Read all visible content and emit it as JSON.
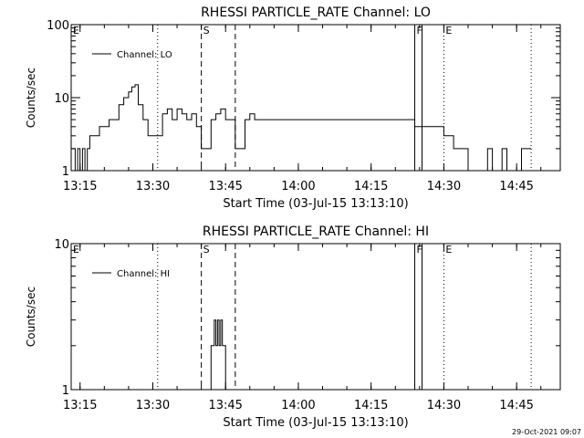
{
  "footer": {
    "timestamp": "29-Oct-2021 09:07"
  },
  "chart_data": [
    {
      "type": "line",
      "title": "RHESSI PARTICLE_RATE Channel: LO",
      "xlabel": "Start Time (03-Jul-15 13:13:10)",
      "ylabel": "Counts/sec",
      "y_scale": "log",
      "ylim": [
        1,
        100
      ],
      "xlim": [
        "13:13:10",
        "14:54:00"
      ],
      "x_ticks": [
        "13:15",
        "13:30",
        "13:45",
        "14:00",
        "14:15",
        "14:30",
        "14:45"
      ],
      "y_ticks": [
        "1",
        "10",
        "100"
      ],
      "legend": "Channel: LO",
      "legend_position": "top-left",
      "markers": [
        {
          "label": "E",
          "time": "13:13:10",
          "style": "none"
        },
        {
          "label": "",
          "time": "13:31:00",
          "style": "dotted"
        },
        {
          "label": "S",
          "time": "13:40:00",
          "style": "dashed"
        },
        {
          "label": "",
          "time": "13:47:00",
          "style": "dashed"
        },
        {
          "label": "F",
          "time": "14:24:00",
          "style": "solid"
        },
        {
          "label": "",
          "time": "14:25:30",
          "style": "solid"
        },
        {
          "label": "E",
          "time": "14:30:00",
          "style": "dotted"
        },
        {
          "label": "",
          "time": "14:48:00",
          "style": "dotted"
        }
      ],
      "series": [
        {
          "name": "Channel: LO",
          "x": [
            "13:13:10",
            "13:14:00",
            "13:14:30",
            "13:15:00",
            "13:15:30",
            "13:16:00",
            "13:16:30",
            "13:17:00",
            "13:18:00",
            "13:19:00",
            "13:20:00",
            "13:21:00",
            "13:22:00",
            "13:23:00",
            "13:24:00",
            "13:25:00",
            "13:25:40",
            "13:26:20",
            "13:27:00",
            "13:28:00",
            "13:29:00",
            "13:30:00",
            "13:31:00",
            "13:32:00",
            "13:33:00",
            "13:34:00",
            "13:35:00",
            "13:36:00",
            "13:37:00",
            "13:38:00",
            "13:39:00",
            "13:40:00",
            "13:41:00",
            "13:42:00",
            "13:43:00",
            "13:44:00",
            "13:45:00",
            "13:46:00",
            "13:47:00",
            "13:48:00",
            "13:49:00",
            "13:50:00",
            "13:51:00",
            "13:52:00",
            "13:54:00",
            "13:56:00",
            "13:58:00",
            "14:00:00",
            "14:02:00",
            "14:04:00",
            "14:06:00",
            "14:08:00",
            "14:10:00",
            "14:12:00",
            "14:14:00",
            "14:16:00",
            "14:18:00",
            "14:20:00",
            "14:22:00",
            "14:24:00",
            "14:26:00",
            "14:28:00",
            "14:29:00",
            "14:30:00",
            "14:31:00",
            "14:32:00",
            "14:33:00",
            "14:34:00",
            "14:35:00",
            "14:36:00",
            "14:37:00",
            "14:38:00",
            "14:39:00",
            "14:40:00",
            "14:41:00",
            "14:42:00",
            "14:43:00",
            "14:44:00",
            "14:46:00",
            "14:48:00"
          ],
          "values": [
            2,
            1,
            2,
            1,
            2,
            1,
            2,
            3,
            3,
            4,
            4,
            5,
            5,
            8,
            10,
            12,
            14,
            15,
            8,
            5,
            3,
            3,
            3,
            6,
            7,
            5,
            7,
            6,
            5,
            6,
            4,
            2,
            2,
            5,
            6,
            7,
            5,
            5,
            2,
            2,
            5,
            6,
            5,
            5,
            5,
            5,
            5,
            5,
            5,
            5,
            5,
            5,
            5,
            5,
            5,
            5,
            5,
            5,
            5,
            4,
            4,
            4,
            4,
            3,
            3,
            2,
            2,
            2,
            1,
            1,
            1,
            1,
            2,
            1,
            1,
            2,
            1,
            1,
            2,
            2
          ]
        }
      ]
    },
    {
      "type": "line",
      "title": "RHESSI PARTICLE_RATE Channel: HI",
      "xlabel": "Start Time (03-Jul-15 13:13:10)",
      "ylabel": "Counts/sec",
      "y_scale": "log",
      "ylim": [
        1,
        10
      ],
      "xlim": [
        "13:13:10",
        "14:54:00"
      ],
      "x_ticks": [
        "13:15",
        "13:30",
        "13:45",
        "14:00",
        "14:15",
        "14:30",
        "14:45"
      ],
      "y_ticks": [
        "1",
        "10"
      ],
      "legend": "Channel: HI",
      "legend_position": "top-left",
      "markers": [
        {
          "label": "E",
          "time": "13:13:10",
          "style": "none"
        },
        {
          "label": "",
          "time": "13:31:00",
          "style": "dotted"
        },
        {
          "label": "S",
          "time": "13:40:00",
          "style": "dashed"
        },
        {
          "label": "",
          "time": "13:47:00",
          "style": "dashed"
        },
        {
          "label": "F",
          "time": "14:24:00",
          "style": "solid"
        },
        {
          "label": "",
          "time": "14:25:30",
          "style": "solid"
        },
        {
          "label": "E",
          "time": "14:30:00",
          "style": "dotted"
        },
        {
          "label": "",
          "time": "14:48:00",
          "style": "dotted"
        }
      ],
      "series": [
        {
          "name": "Channel: HI",
          "x": [
            "13:41:30",
            "13:42:00",
            "13:42:20",
            "13:42:40",
            "13:43:00",
            "13:43:20",
            "13:43:40",
            "13:44:00",
            "13:44:20",
            "13:44:40",
            "13:45:00",
            "13:45:20",
            "13:45:40"
          ],
          "values": [
            1,
            2,
            2,
            3,
            2,
            3,
            2,
            3,
            2,
            2,
            1,
            1,
            1
          ]
        }
      ]
    }
  ]
}
